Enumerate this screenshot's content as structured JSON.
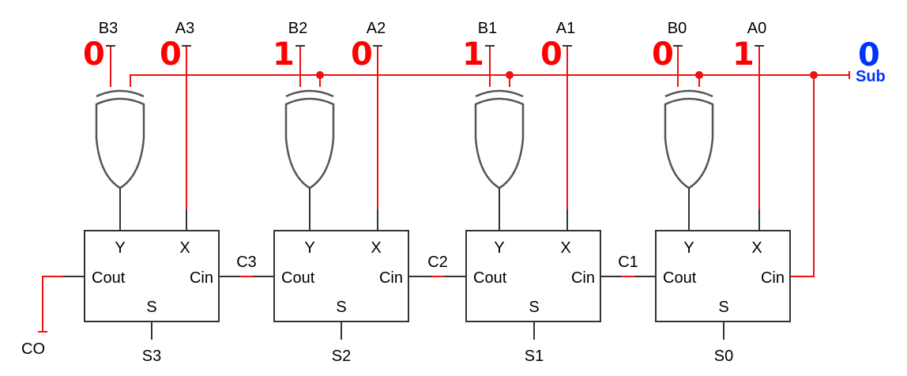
{
  "inputs": [
    {
      "b_label": "B3",
      "a_label": "A3",
      "b_value": "0",
      "a_value": "0"
    },
    {
      "b_label": "B2",
      "a_label": "A2",
      "b_value": "1",
      "a_value": "0"
    },
    {
      "b_label": "B1",
      "a_label": "A1",
      "b_value": "1",
      "a_value": "0"
    },
    {
      "b_label": "B0",
      "a_label": "A0",
      "b_value": "0",
      "a_value": "1"
    }
  ],
  "sub": {
    "value": "0",
    "label": "Sub"
  },
  "adders": [
    {
      "y": "Y",
      "x": "X",
      "cout": "Cout",
      "cin": "Cin",
      "s": "S",
      "sum_label": "S3"
    },
    {
      "y": "Y",
      "x": "X",
      "cout": "Cout",
      "cin": "Cin",
      "s": "S",
      "sum_label": "S2"
    },
    {
      "y": "Y",
      "x": "X",
      "cout": "Cout",
      "cin": "Cin",
      "s": "S",
      "sum_label": "S1"
    },
    {
      "y": "Y",
      "x": "X",
      "cout": "Cout",
      "cin": "Cin",
      "s": "S",
      "sum_label": "S0"
    }
  ],
  "carries": [
    "C3",
    "C2",
    "C1"
  ],
  "carry_out": "CO",
  "colors": {
    "wire_active": "#ee1111",
    "bit_value": "#ff0000",
    "sub_value": "#0033ff",
    "wire": "#333333"
  }
}
